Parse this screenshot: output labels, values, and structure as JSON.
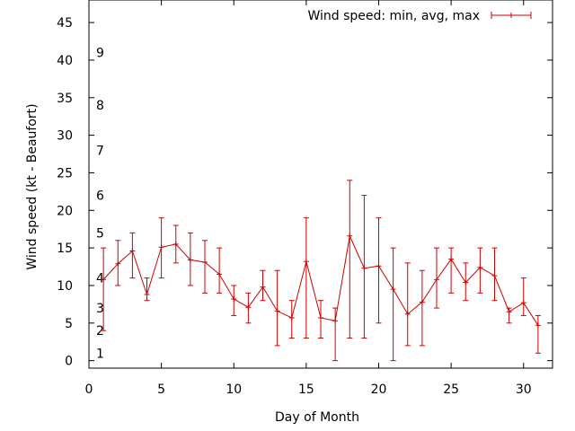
{
  "chart_data": {
    "type": "line",
    "title": "",
    "xlabel": "Day of Month",
    "ylabel": "Wind speed (kt - Beaufort)",
    "xlim": [
      0,
      32
    ],
    "ylim": [
      -1,
      48
    ],
    "x_ticks": [
      0,
      5,
      10,
      15,
      20,
      25,
      30
    ],
    "y_ticks": [
      0,
      5,
      10,
      15,
      20,
      25,
      30,
      35,
      40,
      45
    ],
    "grid": false,
    "legend_position": "top-right",
    "beaufort_marks": [
      {
        "label": "1",
        "value": 1
      },
      {
        "label": "2",
        "value": 4
      },
      {
        "label": "3",
        "value": 7
      },
      {
        "label": "4",
        "value": 11
      },
      {
        "label": "5",
        "value": 17
      },
      {
        "label": "6",
        "value": 22
      },
      {
        "label": "7",
        "value": 28
      },
      {
        "label": "8",
        "value": 34
      },
      {
        "label": "9",
        "value": 41
      }
    ],
    "series": [
      {
        "name": "Wind speed: min, avg, max",
        "color": "#cc0000",
        "x": [
          1,
          2,
          3,
          4,
          5,
          6,
          7,
          8,
          9,
          10,
          11,
          12,
          13,
          14,
          15,
          16,
          17,
          18,
          19,
          20,
          21,
          22,
          23,
          24,
          25,
          26,
          27,
          28,
          29,
          30,
          31
        ],
        "avg": [
          10.8,
          12.9,
          14.6,
          8.8,
          15.1,
          15.5,
          13.4,
          13.1,
          11.5,
          8.2,
          7.1,
          9.8,
          6.6,
          5.7,
          13.2,
          5.7,
          5.3,
          16.6,
          12.3,
          12.6,
          9.5,
          6.2,
          7.8,
          10.8,
          13.5,
          10.4,
          12.4,
          11.3,
          6.5,
          7.7,
          4.7
        ],
        "min": [
          4,
          10,
          11,
          8,
          11,
          13,
          10,
          9,
          9,
          6,
          5,
          8,
          2,
          3,
          3,
          3,
          0,
          3,
          3,
          5,
          0,
          2,
          2,
          7,
          9,
          8,
          9,
          8,
          5,
          6,
          1
        ],
        "max": [
          15,
          16,
          17,
          11,
          19,
          18,
          17,
          16,
          15,
          10,
          9,
          12,
          12,
          8,
          19,
          8,
          7,
          24,
          22,
          19,
          15,
          13,
          12,
          15,
          15,
          13,
          15,
          15,
          7,
          11,
          6
        ]
      }
    ]
  }
}
